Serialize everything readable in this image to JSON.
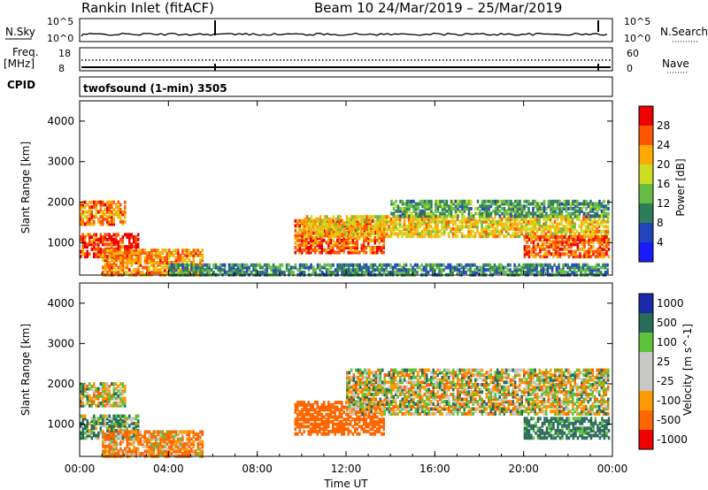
{
  "header": {
    "station": "Rankin Inlet (fitACF)",
    "beam_date": "Beam 10  24/Mar/2019 – 25/Mar/2019"
  },
  "labels": {
    "n_sky": "N.Sky",
    "freq_line1": "Freq.",
    "freq_line2": "[MHz]",
    "cpid": "CPID",
    "n_search": "N.Search",
    "nave": "Nave",
    "program": "twofsound (1-min) 3505"
  },
  "noise_panel": {
    "left_ticks": [
      "10^5",
      "10^0"
    ],
    "right_ticks": [
      "10^5",
      "10^0"
    ]
  },
  "freq_panel": {
    "left_ticks": [
      "18",
      "8"
    ],
    "right_ticks": [
      "60",
      "0"
    ]
  },
  "chart_data": [
    {
      "type": "heatmap",
      "title": "",
      "xlabel": "",
      "ylabel": "Slant Range [km]",
      "xlim": [
        "00:00",
        "00:00"
      ],
      "ylim": [
        200,
        4500
      ],
      "yticks": [
        "1000",
        "2000",
        "3000",
        "4000"
      ],
      "colorbar": {
        "label": "Power [dB]",
        "ticks": [
          "4",
          "8",
          "12",
          "16",
          "20",
          "24",
          "28"
        ],
        "colors": [
          "#1a1aff",
          "#2244bb",
          "#2e7d5a",
          "#66bb44",
          "#ccdd22",
          "#ffaa00",
          "#ff5500",
          "#ee0000"
        ]
      },
      "structures": [
        {
          "start": "00:00",
          "end": "02:40",
          "range_km": [
            700,
            1300
          ],
          "power_db": 28
        },
        {
          "start": "00:00",
          "end": "02:00",
          "range_km": [
            1500,
            2100
          ],
          "power_db": 24
        },
        {
          "start": "01:00",
          "end": "05:30",
          "range_km": [
            250,
            900
          ],
          "power_db": 24
        },
        {
          "start": "09:40",
          "end": "13:40",
          "range_km": [
            800,
            1600
          ],
          "power_db": 26
        },
        {
          "start": "10:00",
          "end": "23:50",
          "range_km": [
            1200,
            1700
          ],
          "power_db": 20
        },
        {
          "start": "14:00",
          "end": "23:50",
          "range_km": [
            1700,
            2100
          ],
          "power_db": 12
        },
        {
          "start": "20:00",
          "end": "23:50",
          "range_km": [
            700,
            1200
          ],
          "power_db": 26
        },
        {
          "start": "04:00",
          "end": "23:50",
          "range_km": [
            250,
            500
          ],
          "power_db": 10
        }
      ]
    },
    {
      "type": "heatmap",
      "title": "",
      "xlabel": "Time UT",
      "ylabel": "Slant Range [km]",
      "xlim": [
        "00:00",
        "00:00"
      ],
      "ylim": [
        200,
        4500
      ],
      "xticks": [
        "00:00",
        "04:00",
        "08:00",
        "12:00",
        "16:00",
        "20:00",
        "00:00"
      ],
      "yticks": [
        "1000",
        "2000",
        "3000",
        "4000"
      ],
      "colorbar": {
        "label": "Velocity [m s^-1]",
        "ticks": [
          "1000",
          "500",
          "100",
          "25",
          "-25",
          "-100",
          "-500",
          "-1000"
        ],
        "colors": [
          "#1a2aa8",
          "#2a6b5a",
          "#5cc23a",
          "#c8c8c4",
          "#c8c8c4",
          "#ff9a00",
          "#ff6600",
          "#ee0000"
        ]
      },
      "structures": [
        {
          "start": "00:00",
          "end": "02:40",
          "range_km": [
            700,
            1300
          ],
          "velocity": 100
        },
        {
          "start": "00:00",
          "end": "02:00",
          "range_km": [
            1500,
            2100
          ],
          "velocity": 0
        },
        {
          "start": "01:00",
          "end": "05:30",
          "range_km": [
            250,
            900
          ],
          "velocity": -100
        },
        {
          "start": "09:40",
          "end": "13:40",
          "range_km": [
            800,
            1600
          ],
          "velocity": -300
        },
        {
          "start": "12:00",
          "end": "23:50",
          "range_km": [
            1300,
            2400
          ],
          "velocity": 0
        },
        {
          "start": "20:00",
          "end": "23:50",
          "range_km": [
            700,
            1200
          ],
          "velocity": 200
        }
      ]
    }
  ]
}
